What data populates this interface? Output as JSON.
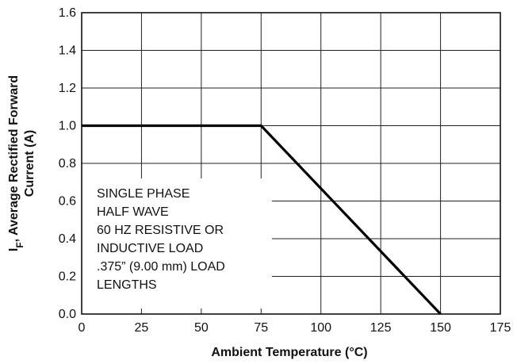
{
  "chart_data": {
    "type": "line",
    "xlabel": "Ambient Temperature (°C)",
    "ylabel_lines": [
      {
        "main": "I",
        "sub": "F",
        "rest": ", Average Rectified Forward"
      },
      {
        "main": "Current (A)",
        "sub": "",
        "rest": ""
      }
    ],
    "xlim": [
      0,
      175
    ],
    "ylim": [
      0,
      1.6
    ],
    "x_ticks": [
      0,
      25,
      50,
      75,
      100,
      125,
      150,
      175
    ],
    "x_tick_labels": [
      "0",
      "25",
      "50",
      "75",
      "100",
      "125",
      "150",
      "175"
    ],
    "y_ticks": [
      0,
      0.2,
      0.4,
      0.6,
      0.8,
      1.0,
      1.2,
      1.4,
      1.6
    ],
    "y_tick_labels": [
      "0.0",
      "0.2",
      "0.4",
      "0.6",
      "0.8",
      "1.0",
      "1.2",
      "1.4",
      "1.6"
    ],
    "grid": true,
    "series": [
      {
        "x": [
          0,
          75,
          150
        ],
        "y": [
          1.0,
          1.0,
          0.0
        ],
        "color": "#000000"
      }
    ],
    "annotation_lines": [
      "SINGLE PHASE",
      "HALF WAVE",
      "60 HZ RESISTIVE OR",
      "INDUCTIVE LOAD",
      ".375” (9.00 mm) LOAD",
      "LENGTHS"
    ]
  }
}
